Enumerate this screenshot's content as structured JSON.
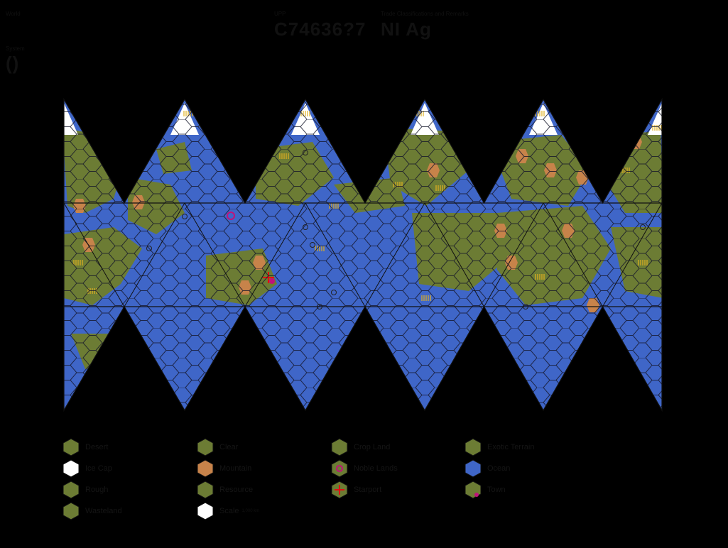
{
  "header": {
    "world_label": "World",
    "upp_label": "UPP",
    "upp_value": "C74636?7",
    "trade_label": "Trade Classifications and Remarks",
    "trade_value": "NI Ag",
    "system_label": "System",
    "system_value": "()"
  },
  "colors": {
    "ocean": "#3f66c8",
    "land": "#6c7c34",
    "mountain": "#c7834a",
    "icecap": "#ffffff",
    "hexline": "#14162a",
    "accent": "#c0127a"
  },
  "legend": [
    {
      "id": "desert",
      "label": "Desert",
      "icon": "desert-hex-icon"
    },
    {
      "id": "clear",
      "label": "Clear",
      "icon": "clear-hex-icon"
    },
    {
      "id": "cropland",
      "label": "Crop Land",
      "icon": "cropland-hex-icon"
    },
    {
      "id": "exotic",
      "label": "Exotic Terrain",
      "icon": "exotic-hex-icon"
    },
    {
      "id": "icecap",
      "label": "Ice Cap",
      "icon": "icecap-hex-icon"
    },
    {
      "id": "mountain",
      "label": "Mountain",
      "icon": "mountain-hex-icon"
    },
    {
      "id": "noble",
      "label": "Noble Lands",
      "icon": "noble-hex-icon"
    },
    {
      "id": "ocean",
      "label": "Ocean",
      "icon": "ocean-hex-icon"
    },
    {
      "id": "rough",
      "label": "Rough",
      "icon": "rough-hex-icon"
    },
    {
      "id": "resource",
      "label": "Resource",
      "icon": "resource-hex-icon"
    },
    {
      "id": "starport",
      "label": "Starport",
      "icon": "starport-hex-icon"
    },
    {
      "id": "town",
      "label": "Town",
      "icon": "town-hex-icon"
    },
    {
      "id": "wasteland",
      "label": "Wasteland",
      "icon": "wasteland-hex-icon"
    },
    {
      "id": "scale",
      "label": "Scale",
      "icon": "scale-hex-icon",
      "sub": "1,000 km"
    }
  ]
}
